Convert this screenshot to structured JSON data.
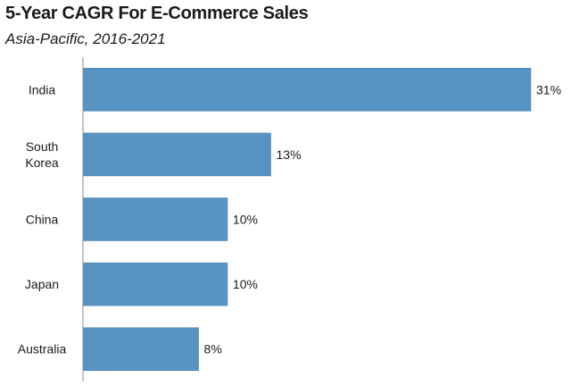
{
  "chart_data": {
    "type": "bar",
    "orientation": "horizontal",
    "title": "5-Year CAGR For E-Commerce Sales",
    "subtitle": "Asia-Pacific, 2016-2021",
    "categories": [
      [
        "India"
      ],
      [
        "South",
        "Korea"
      ],
      [
        "China"
      ],
      [
        "Japan"
      ],
      [
        "Australia"
      ]
    ],
    "values": [
      31,
      13,
      10,
      10,
      8
    ],
    "value_labels": [
      "31%",
      "13%",
      "10%",
      "10%",
      "8%"
    ],
    "xlim": [
      0,
      31
    ],
    "grid": false,
    "legend": "none",
    "bar_color": "#5794C4",
    "bar_border_color": "#3F79A8",
    "axis_color": "#888888"
  }
}
